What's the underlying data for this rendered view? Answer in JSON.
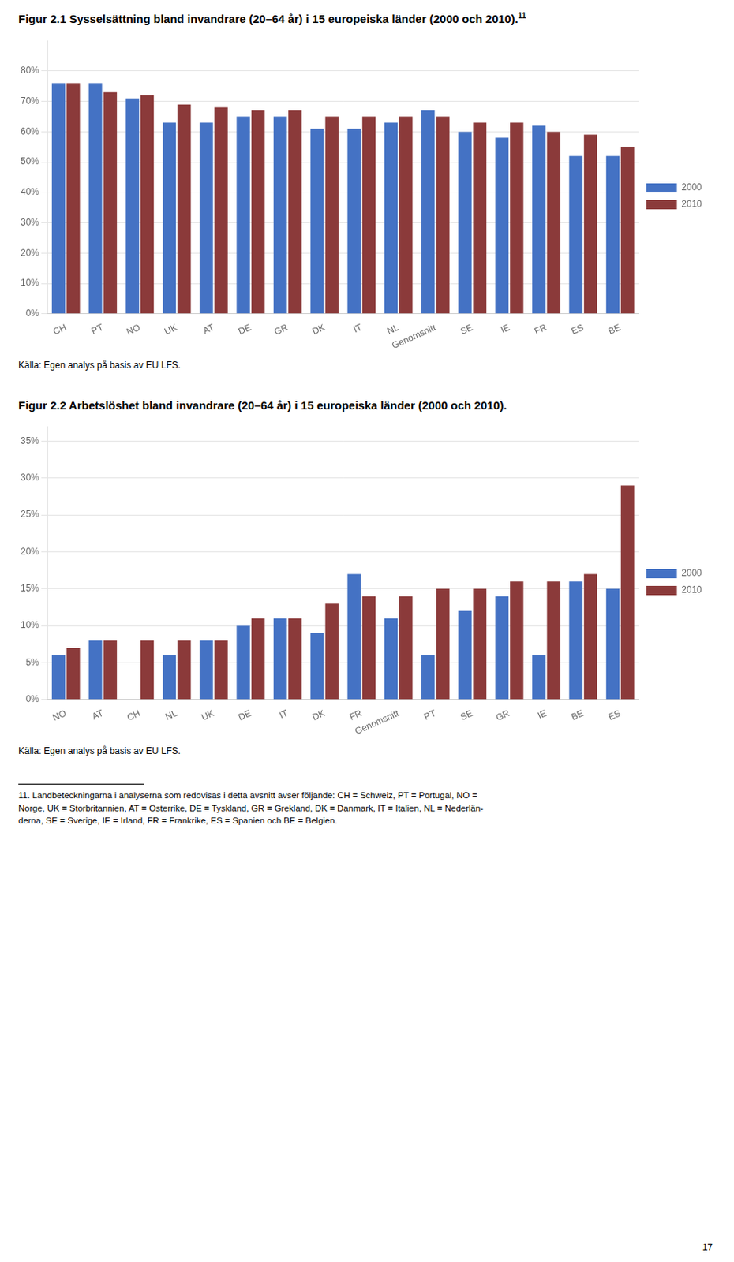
{
  "chart_data": [
    {
      "type": "bar",
      "title": "Figur 2.1 Sysselsättning bland invandrare (20–64 år) i 15 europeiska länder (2000 och 2010).",
      "title_superscript": "11",
      "categories": [
        "CH",
        "PT",
        "NO",
        "UK",
        "AT",
        "DE",
        "GR",
        "DK",
        "IT",
        "NL",
        "Genomsnitt",
        "SE",
        "IE",
        "FR",
        "ES",
        "BE"
      ],
      "series": [
        {
          "name": "2000",
          "color": "#4472C4",
          "values": [
            76,
            76,
            71,
            63,
            63,
            65,
            65,
            61,
            61,
            63,
            67,
            60,
            58,
            62,
            52,
            52
          ]
        },
        {
          "name": "2010",
          "color": "#8B3A3A",
          "values": [
            76,
            73,
            72,
            69,
            68,
            67,
            67,
            65,
            65,
            65,
            65,
            63,
            63,
            60,
            59,
            55
          ]
        }
      ],
      "ylim": [
        0,
        90
      ],
      "yticks": [
        {
          "value": 0,
          "label": "0%"
        },
        {
          "value": 10,
          "label": "10%"
        },
        {
          "value": 20,
          "label": "20%"
        },
        {
          "value": 30,
          "label": "30%"
        },
        {
          "value": 40,
          "label": "40%"
        },
        {
          "value": 50,
          "label": "50%"
        },
        {
          "value": 60,
          "label": "60%"
        },
        {
          "value": 70,
          "label": "70%"
        },
        {
          "value": 80,
          "label": "80%"
        }
      ],
      "grid": true,
      "legend": "right",
      "source": "Källa: Egen analys på basis av EU LFS."
    },
    {
      "type": "bar",
      "title": "Figur 2.2 Arbetslöshet bland invandrare (20–64 år) i 15 europeiska länder (2000 och 2010).",
      "categories": [
        "NO",
        "AT",
        "CH",
        "NL",
        "UK",
        "DE",
        "IT",
        "DK",
        "FR",
        "Genomsnitt",
        "PT",
        "SE",
        "GR",
        "IE",
        "BE",
        "ES"
      ],
      "series": [
        {
          "name": "2000",
          "color": "#4472C4",
          "values": [
            6,
            8,
            0,
            6,
            8,
            10,
            11,
            9,
            17,
            11,
            6,
            12,
            14,
            6,
            16,
            15
          ]
        },
        {
          "name": "2010",
          "color": "#8B3A3A",
          "values": [
            7,
            8,
            8,
            8,
            8,
            11,
            11,
            13,
            14,
            14,
            15,
            15,
            16,
            16,
            17,
            29
          ]
        }
      ],
      "ylim": [
        0,
        37
      ],
      "yticks": [
        {
          "value": 0,
          "label": "0%"
        },
        {
          "value": 5,
          "label": "5%"
        },
        {
          "value": 10,
          "label": "10%"
        },
        {
          "value": 15,
          "label": "15%"
        },
        {
          "value": 20,
          "label": "20%"
        },
        {
          "value": 25,
          "label": "25%"
        },
        {
          "value": 30,
          "label": "30%"
        },
        {
          "value": 35,
          "label": "35%"
        }
      ],
      "grid": true,
      "legend": "right",
      "source": "Källa: Egen analys på basis av EU LFS.",
      "footnote": [
        "11. Landbeteckningarna i analyserna som redovisas i detta avsnitt avser följande: CH = Schweiz, PT = Portugal, NO =",
        "Norge, UK = Storbritannien, AT = Österrike, DE = Tyskland, GR = Grekland, DK = Danmark, IT = Italien, NL = Nederlän-",
        "derna, SE = Sverige, IE = Irland, FR = Frankrike, ES = Spanien och BE = Belgien."
      ],
      "page_number": "17"
    }
  ]
}
